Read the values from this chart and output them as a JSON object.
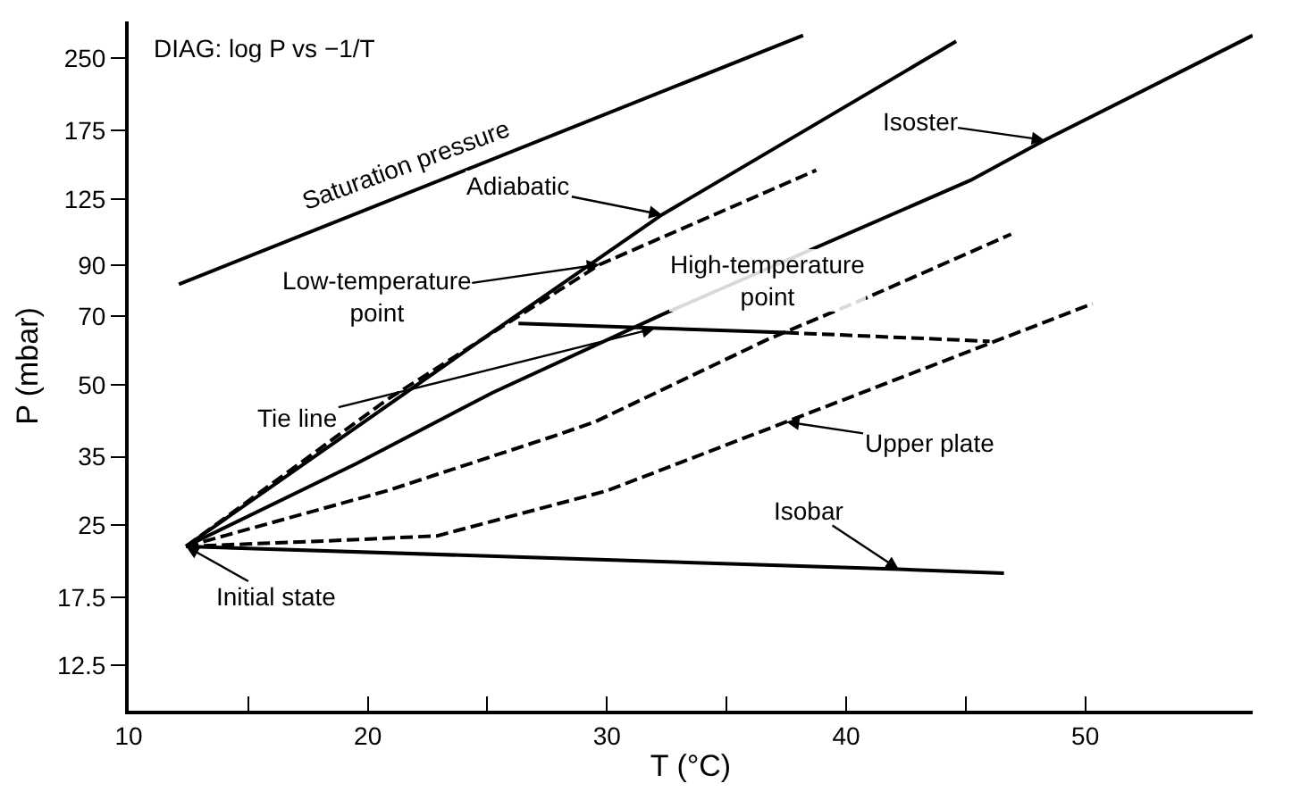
{
  "chart_data": {
    "type": "line",
    "xlabel": "T (°C)",
    "ylabel": "P (mbar)",
    "log": "y",
    "grid": false,
    "marker": "none",
    "xlim": [
      10,
      57
    ],
    "ylim": [
      10,
      300
    ],
    "xticks": [
      10,
      {
        "value": 15,
        "label": null
      },
      20,
      {
        "value": 25,
        "label": null
      },
      30,
      {
        "value": 35,
        "label": null
      },
      40,
      {
        "value": 45,
        "label": null
      },
      50
    ],
    "yticks": [
      12.5,
      17.5,
      25,
      35,
      50,
      70,
      90,
      125,
      175,
      250
    ],
    "series": [
      {
        "color": "#000000",
        "line_style": "solid",
        "x": [
          12.1,
          38.2
        ],
        "values": [
          82,
          280
        ]
      },
      {
        "color": "#000000",
        "line_style": "solid",
        "x": [
          12.4,
          25.2,
          32.3,
          44.6
        ],
        "values": [
          22.5,
          64.7,
          115.6,
          272
        ]
      },
      {
        "color": "#000000",
        "line_style": "dashed",
        "x": [
          12.4,
          20.8,
          29.7,
          38.75
        ],
        "values": [
          22.5,
          46.4,
          90.4,
          144
        ]
      },
      {
        "color": "#000000",
        "line_style": "solid",
        "x": [
          12.4,
          19.5,
          25.2,
          32.3,
          45.2,
          48.3,
          57
        ],
        "values": [
          22.5,
          33.8,
          48,
          70.6,
          137,
          167,
          280
        ]
      },
      {
        "color": "#000000",
        "line_style": "dashed",
        "x": [
          12.4,
          20.8,
          27.6,
          29.5,
          36.7,
          40.8,
          46.9
        ],
        "values": [
          22.5,
          29.6,
          38.5,
          41.6,
          62.4,
          76.5,
          105
        ]
      },
      {
        "color": "#000000",
        "line_style": "dashed",
        "x": [
          12.4,
          18.2,
          22.9,
          30,
          37.5,
          50.3
        ],
        "values": [
          22.5,
          23.1,
          23.7,
          29.6,
          41.6,
          74.5
        ]
      },
      {
        "color": "#000000",
        "line_style": "solid",
        "x": [
          12.4,
          42.2,
          46.6
        ],
        "values": [
          22.5,
          20.1,
          19.7
        ]
      },
      {
        "color": "#000000",
        "line_style": "solid",
        "x": [
          26.3,
          37.5
        ],
        "values": [
          67.6,
          64.6
        ]
      },
      {
        "color": "#000000",
        "line_style": "dashed",
        "x": [
          37.5,
          46.0
        ],
        "values": [
          64.6,
          61.9
        ]
      }
    ],
    "annotations": [
      "DIAG: log P vs −1/T",
      {
        "text": "Saturation pressure",
        "x": 21.6,
        "y": 132
      },
      {
        "text": "Adiabatic",
        "x": 32.3,
        "y": 115.6
      },
      {
        "text": "Low-temperature\npoint",
        "x": 29.7,
        "y": 90.4
      },
      {
        "text": "High-temperature\npoint",
        "x": 40.8,
        "y": 76.5
      },
      {
        "text": "Isoster",
        "x": 48.3,
        "y": 167
      },
      {
        "text": "Tie line",
        "x": 32,
        "y": 66
      },
      {
        "text": "Upper plate",
        "x": 37.5,
        "y": 41.6
      },
      {
        "text": "Isobar",
        "x": 42.2,
        "y": 20.1
      },
      {
        "text": "Initial state",
        "x": 12.4,
        "y": 22.5
      }
    ]
  }
}
